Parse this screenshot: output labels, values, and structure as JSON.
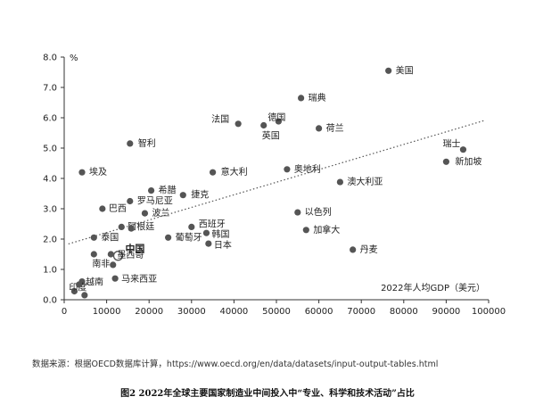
{
  "chart_data": {
    "type": "scatter",
    "ylabel": "%",
    "xlabel": "2022年人均GDP（美元）",
    "xlim": [
      0,
      100000
    ],
    "ylim": [
      0,
      8.0
    ],
    "xticks": [
      0,
      10000,
      20000,
      30000,
      40000,
      50000,
      60000,
      70000,
      80000,
      90000,
      100000
    ],
    "xtick_labels": [
      "0",
      "10000",
      "20000",
      "30000",
      "40000",
      "50000",
      "60000",
      "70000",
      "80000",
      "90000",
      "100000"
    ],
    "yticks": [
      0,
      1,
      2,
      3,
      4,
      5,
      6,
      7,
      8
    ],
    "ytick_labels": [
      "0.0",
      "1.0",
      "2.0",
      "3.0",
      "4.0",
      "5.0",
      "6.0",
      "7.0",
      "8.0"
    ],
    "grid": false,
    "trendline": {
      "style": "dotted",
      "x": [
        0,
        100000
      ],
      "y": [
        1.8,
        5.95
      ]
    },
    "highlight": "中国",
    "points": [
      {
        "label": "美国",
        "x": 76400,
        "y": 7.55
      },
      {
        "label": "瑞典",
        "x": 55800,
        "y": 6.65
      },
      {
        "label": "法国",
        "x": 41000,
        "y": 5.8
      },
      {
        "label": "英国",
        "x": 47000,
        "y": 5.75
      },
      {
        "label": "德国",
        "x": 50500,
        "y": 5.88
      },
      {
        "label": "荷兰",
        "x": 60000,
        "y": 5.65
      },
      {
        "label": "瑞士",
        "x": 94000,
        "y": 4.95
      },
      {
        "label": "新加坡",
        "x": 90000,
        "y": 4.55
      },
      {
        "label": "智利",
        "x": 15500,
        "y": 5.15
      },
      {
        "label": "埃及",
        "x": 4200,
        "y": 4.2
      },
      {
        "label": "意大利",
        "x": 35000,
        "y": 4.2
      },
      {
        "label": "奥地利",
        "x": 52500,
        "y": 4.3
      },
      {
        "label": "澳大利亚",
        "x": 65000,
        "y": 3.88
      },
      {
        "label": "希腊",
        "x": 20500,
        "y": 3.6
      },
      {
        "label": "捷克",
        "x": 28000,
        "y": 3.45
      },
      {
        "label": "罗马尼亚",
        "x": 15500,
        "y": 3.25
      },
      {
        "label": "巴西",
        "x": 9000,
        "y": 3.0
      },
      {
        "label": "波兰",
        "x": 19000,
        "y": 2.85
      },
      {
        "label": "以色列",
        "x": 55000,
        "y": 2.88
      },
      {
        "label": "泰国",
        "x": 7000,
        "y": 2.05
      },
      {
        "label": "阿根廷",
        "x": 13500,
        "y": 2.4
      },
      {
        "label": "西班牙",
        "x": 30000,
        "y": 2.4
      },
      {
        "label": "韩国",
        "x": 33500,
        "y": 2.2
      },
      {
        "label": "葡萄牙",
        "x": 24500,
        "y": 2.05
      },
      {
        "label": "日本",
        "x": 34000,
        "y": 1.85
      },
      {
        "label": "加拿大",
        "x": 57000,
        "y": 2.3
      },
      {
        "label": "丹麦",
        "x": 68000,
        "y": 1.65
      },
      {
        "label": "中国",
        "x": 12700,
        "y": 1.45
      },
      {
        "label": "南非",
        "x": 7000,
        "y": 1.5
      },
      {
        "label": "墨西哥",
        "x": 11000,
        "y": 1.5
      },
      {
        "label": "马来西亚",
        "x": 12000,
        "y": 0.7
      },
      {
        "label": "越南",
        "x": 4200,
        "y": 0.6
      },
      {
        "label": "印度",
        "x": 2400,
        "y": 0.28
      },
      {
        "label": "",
        "x": 3500,
        "y": 0.5
      },
      {
        "label": "",
        "x": 4800,
        "y": 0.15
      },
      {
        "label": "",
        "x": 11500,
        "y": 1.15
      },
      {
        "label": "",
        "x": 15800,
        "y": 2.35
      }
    ]
  },
  "source_text": "数据来源：根据OECD数据库计算，https://www.oecd.org/en/data/datasets/input-output-tables.html",
  "caption": "图2  2022年全球主要国家制造业中间投入中“专业、科学和技术活动”占比"
}
